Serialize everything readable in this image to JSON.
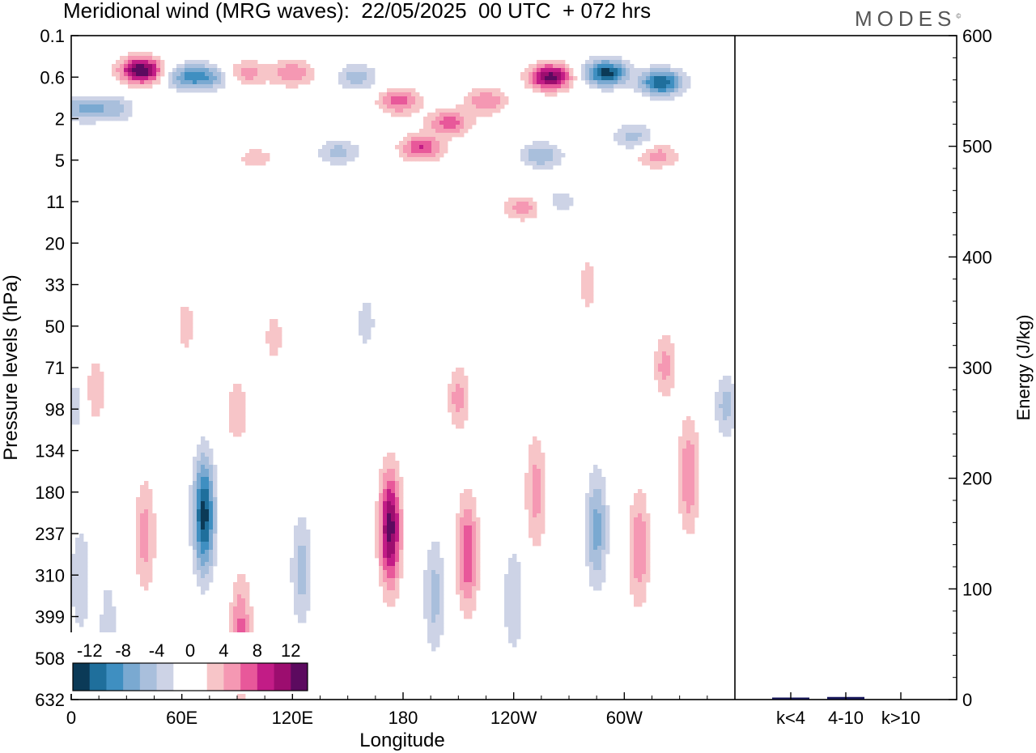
{
  "chart_data": {
    "type": "heatmap",
    "title": "Meridional wind (MRG waves):  22/05/2025  00 UTC  + 072 hrs",
    "brand": "MODES",
    "brand_mark": "©",
    "xlabel": "Longitude",
    "ylabel": "Pressure levels (hPa)",
    "x_ticks": [
      "0",
      "60E",
      "120E",
      "180",
      "120W",
      "60W"
    ],
    "y_ticks": [
      "0.1",
      "0.6",
      "2",
      "5",
      "11",
      "20",
      "33",
      "50",
      "71",
      "98",
      "134",
      "180",
      "237",
      "310",
      "399",
      "508",
      "632"
    ],
    "colorbar": {
      "labels": [
        "-12",
        "-8",
        "-4",
        "0",
        "4",
        "8",
        "12"
      ],
      "colors": [
        "#0b3a57",
        "#1f6f9c",
        "#3f8fc1",
        "#7aa9d1",
        "#a9bfdc",
        "#cdd3e6",
        "#ffffff",
        "#ffffff",
        "#f7c5c8",
        "#f598b3",
        "#e8589a",
        "#c21c86",
        "#9c0d6f",
        "#5c0a5f"
      ]
    },
    "bar_panel": {
      "type": "bar",
      "ylabel": "Energy (J/kg)",
      "ylim": [
        0,
        600
      ],
      "y_ticks": [
        "0",
        "100",
        "200",
        "300",
        "400",
        "500",
        "600"
      ],
      "categories": [
        "k<4",
        "4-10",
        "k>10"
      ],
      "values": [
        1,
        2,
        0
      ],
      "bar_color": "#1a1a5e"
    },
    "features": [
      {
        "lon": 38,
        "lev": 0.45,
        "v": 14
      },
      {
        "lon": 62,
        "lev": 0.6,
        "v": -7
      },
      {
        "lon": 75,
        "lev": 0.6,
        "v": -6
      },
      {
        "lon": 95,
        "lev": 0.5,
        "v": 5
      },
      {
        "lon": 120,
        "lev": 0.5,
        "v": 6
      },
      {
        "lon": 155,
        "lev": 0.6,
        "v": -5
      },
      {
        "lon": 178,
        "lev": 1.2,
        "v": 7
      },
      {
        "lon": 190,
        "lev": 3.8,
        "v": 8
      },
      {
        "lon": 205,
        "lev": 2.2,
        "v": 7
      },
      {
        "lon": 225,
        "lev": 1.2,
        "v": 6
      },
      {
        "lon": 260,
        "lev": 0.6,
        "v": 13
      },
      {
        "lon": 290,
        "lev": 0.5,
        "v": -13
      },
      {
        "lon": 320,
        "lev": 0.7,
        "v": -12
      },
      {
        "lon": 6,
        "lev": 1.5,
        "v": -6
      },
      {
        "lon": 23,
        "lev": 1.5,
        "v": -5
      },
      {
        "lon": 255,
        "lev": 4.5,
        "v": -6
      },
      {
        "lon": 305,
        "lev": 3,
        "v": -5
      },
      {
        "lon": 318,
        "lev": 4.5,
        "v": 5
      },
      {
        "lon": 145,
        "lev": 4.2,
        "v": -5
      },
      {
        "lon": 100,
        "lev": 4.8,
        "v": 3
      },
      {
        "lon": 72,
        "lev": 210,
        "v": -13
      },
      {
        "lon": 173,
        "lev": 230,
        "v": 13
      },
      {
        "lon": 215,
        "lev": 270,
        "v": 8
      },
      {
        "lon": 92,
        "lev": 450,
        "v": 7
      },
      {
        "lon": 40,
        "lev": 240,
        "v": 5
      },
      {
        "lon": 90,
        "lev": 100,
        "v": 4
      },
      {
        "lon": 13,
        "lev": 85,
        "v": 4
      },
      {
        "lon": 125,
        "lev": 300,
        "v": -5
      },
      {
        "lon": 197,
        "lev": 350,
        "v": -5
      },
      {
        "lon": 240,
        "lev": 360,
        "v": -4
      },
      {
        "lon": 252,
        "lev": 180,
        "v": 5
      },
      {
        "lon": 285,
        "lev": 230,
        "v": -7
      },
      {
        "lon": 308,
        "lev": 260,
        "v": 6
      },
      {
        "lon": 335,
        "lev": 160,
        "v": 6
      },
      {
        "lon": 355,
        "lev": 95,
        "v": -5
      },
      {
        "lon": 210,
        "lev": 90,
        "v": 5
      },
      {
        "lon": 322,
        "lev": 70,
        "v": 5
      },
      {
        "lon": 5,
        "lev": 320,
        "v": -4
      },
      {
        "lon": 20,
        "lev": 420,
        "v": -3
      },
      {
        "lon": 3,
        "lev": 95,
        "v": -3
      },
      {
        "lon": 160,
        "lev": 48,
        "v": -3
      },
      {
        "lon": 280,
        "lev": 33,
        "v": 3
      },
      {
        "lon": 110,
        "lev": 55,
        "v": 3
      },
      {
        "lon": 62,
        "lev": 50,
        "v": 3
      },
      {
        "lon": 245,
        "lev": 12,
        "v": 5
      },
      {
        "lon": 265,
        "lev": 11,
        "v": -3
      }
    ]
  }
}
